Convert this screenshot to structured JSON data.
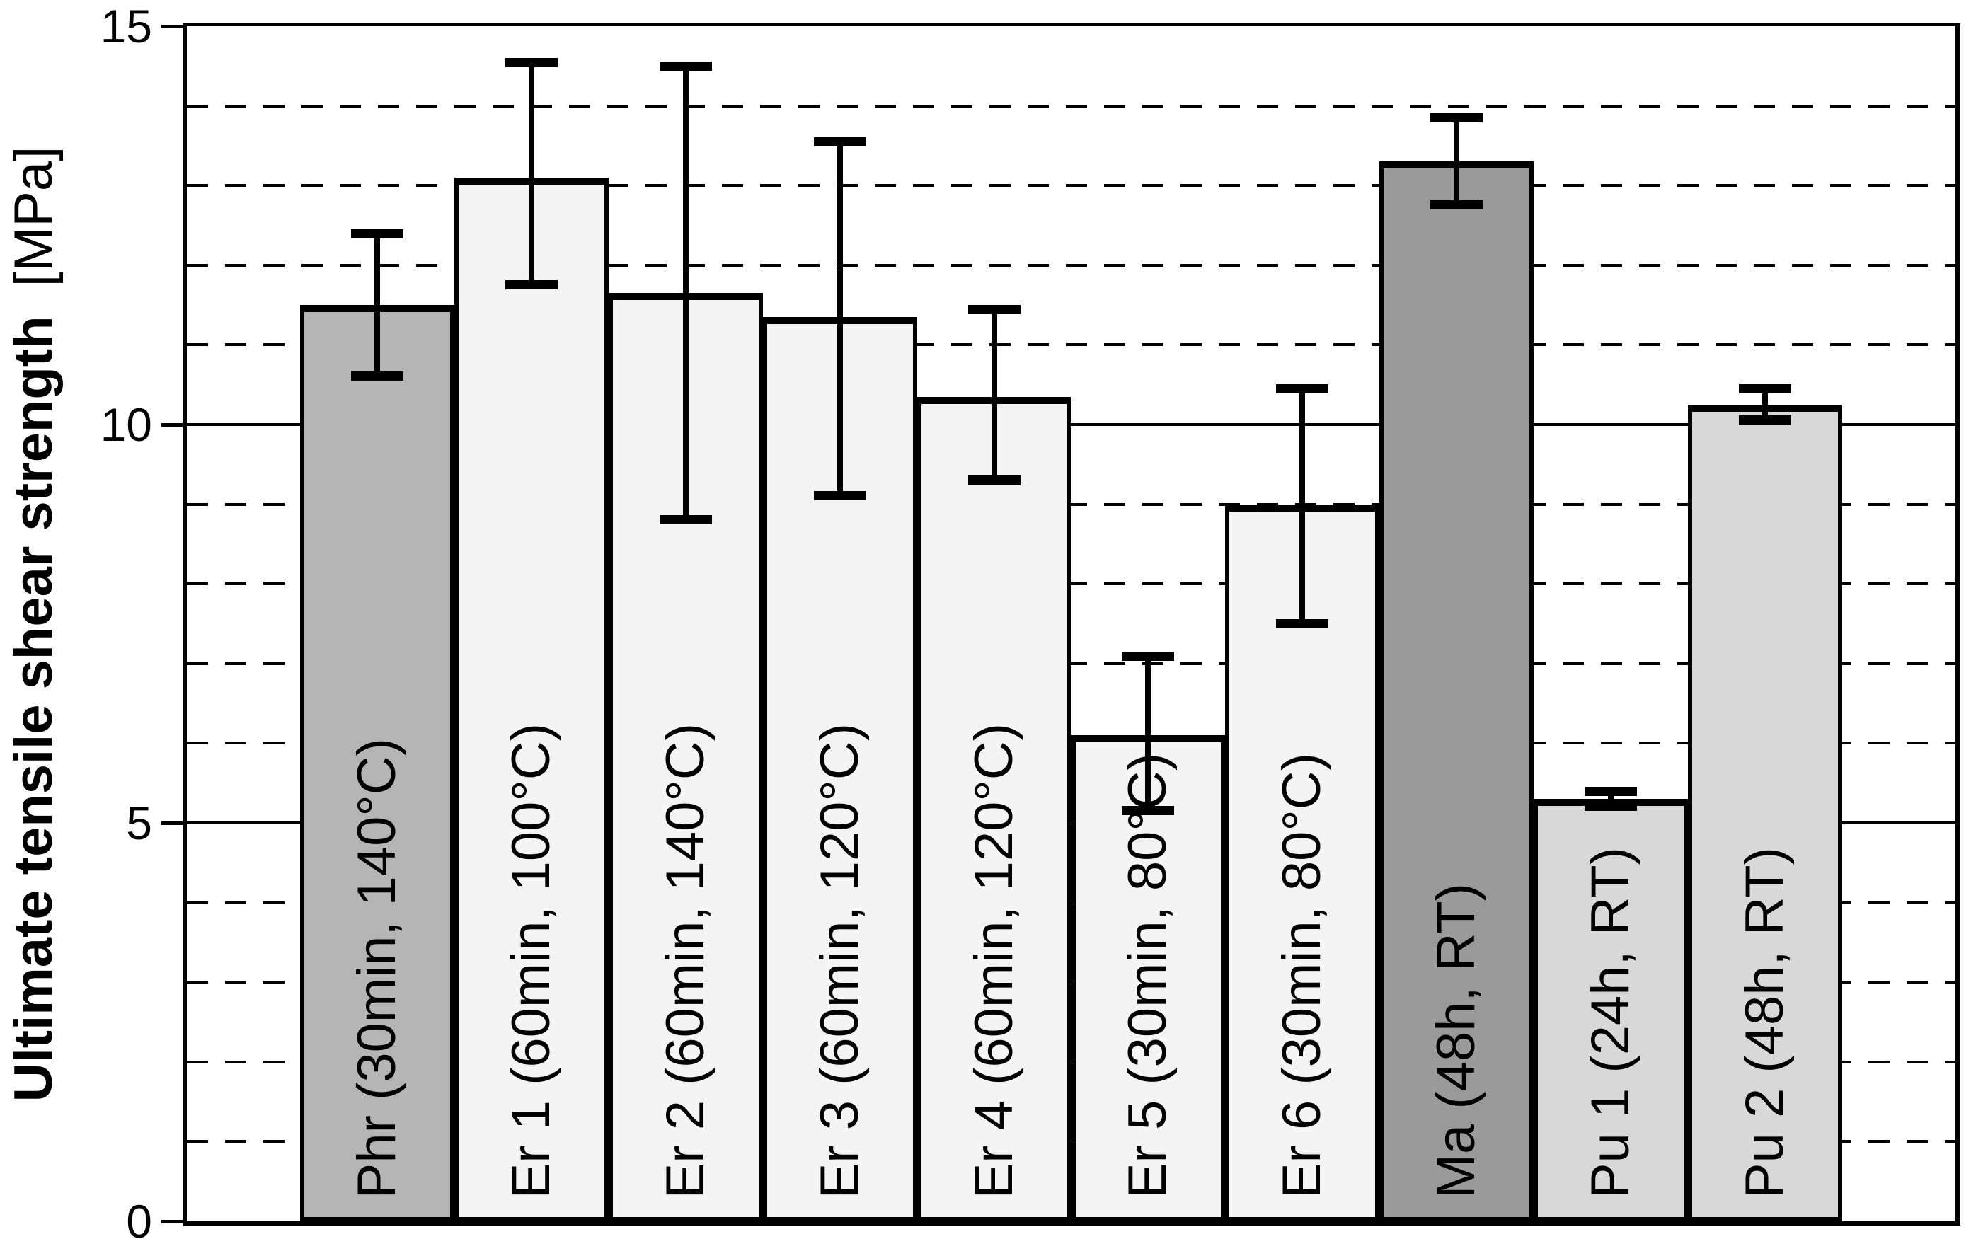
{
  "chart_data": {
    "type": "bar",
    "title": "",
    "ylabel_main": "Ultimate tensile shear strength",
    "ylabel_unit": "[MPa]",
    "xlabel": "",
    "ylim": [
      0,
      15
    ],
    "yticks": [
      15,
      10,
      5,
      0
    ],
    "solid_gridlines": [
      5,
      10
    ],
    "dashed_gridlines": [
      1,
      2,
      3,
      4,
      6,
      7,
      8,
      9,
      11,
      12,
      13,
      14
    ],
    "grid": true,
    "legend_position": "none",
    "categories": [
      "Phr (30min, 140°C)",
      "Er 1 (60min, 100°C)",
      "Er 2 (60min, 140°C)",
      "Er 3 (60min, 120°C)",
      "Er 4 (60min, 120°C)",
      "Er 5 (30min, 80°C)",
      "Er 6 (30min, 80°C)",
      "Ma (48h, RT)",
      "Pu 1 (24h, RT)",
      "Pu 2 (48h, RT)"
    ],
    "bars": [
      {
        "label": "Phr (30min, 140°C)",
        "value": 11.5,
        "err_plus": 0.9,
        "err_minus": 0.9,
        "fill": "#b5b5b5"
      },
      {
        "label": "Er 1 (60min, 100°C)",
        "value": 13.1,
        "err_plus": 1.45,
        "err_minus": 1.35,
        "fill": "#f4f4f4"
      },
      {
        "label": "Er 2 (60min, 140°C)",
        "value": 11.65,
        "err_plus": 2.85,
        "err_minus": 2.85,
        "fill": "#f4f4f4"
      },
      {
        "label": "Er 3 (60min, 120°C)",
        "value": 11.35,
        "err_plus": 2.2,
        "err_minus": 2.25,
        "fill": "#f4f4f4"
      },
      {
        "label": "Er 4 (60min, 120°C)",
        "value": 10.35,
        "err_plus": 1.1,
        "err_minus": 1.05,
        "fill": "#f4f4f4"
      },
      {
        "label": "Er 5 (30min, 80°C)",
        "value": 6.1,
        "err_plus": 1.0,
        "err_minus": 0.95,
        "fill": "#f4f4f4"
      },
      {
        "label": "Er 6 (30min, 80°C)",
        "value": 9.0,
        "err_plus": 1.45,
        "err_minus": 1.5,
        "fill": "#f4f4f4"
      },
      {
        "label": "Ma (48h, RT)",
        "value": 13.3,
        "err_plus": 0.55,
        "err_minus": 0.55,
        "fill": "#9a9a9a"
      },
      {
        "label": "Pu 1 (24h, RT)",
        "value": 5.3,
        "err_plus": 0.1,
        "err_minus": 0.1,
        "fill": "#d8d8d8"
      },
      {
        "label": "Pu 2 (48h, RT)",
        "value": 10.25,
        "err_plus": 0.2,
        "err_minus": 0.2,
        "fill": "#d8d8d8"
      }
    ],
    "colors": {
      "axis": "#000000",
      "error_bar": "#000000",
      "background": "#ffffff",
      "bar_phr": "#b5b5b5",
      "bar_er": "#f4f4f4",
      "bar_ma": "#9a9a9a",
      "bar_pu": "#d8d8d8"
    }
  }
}
